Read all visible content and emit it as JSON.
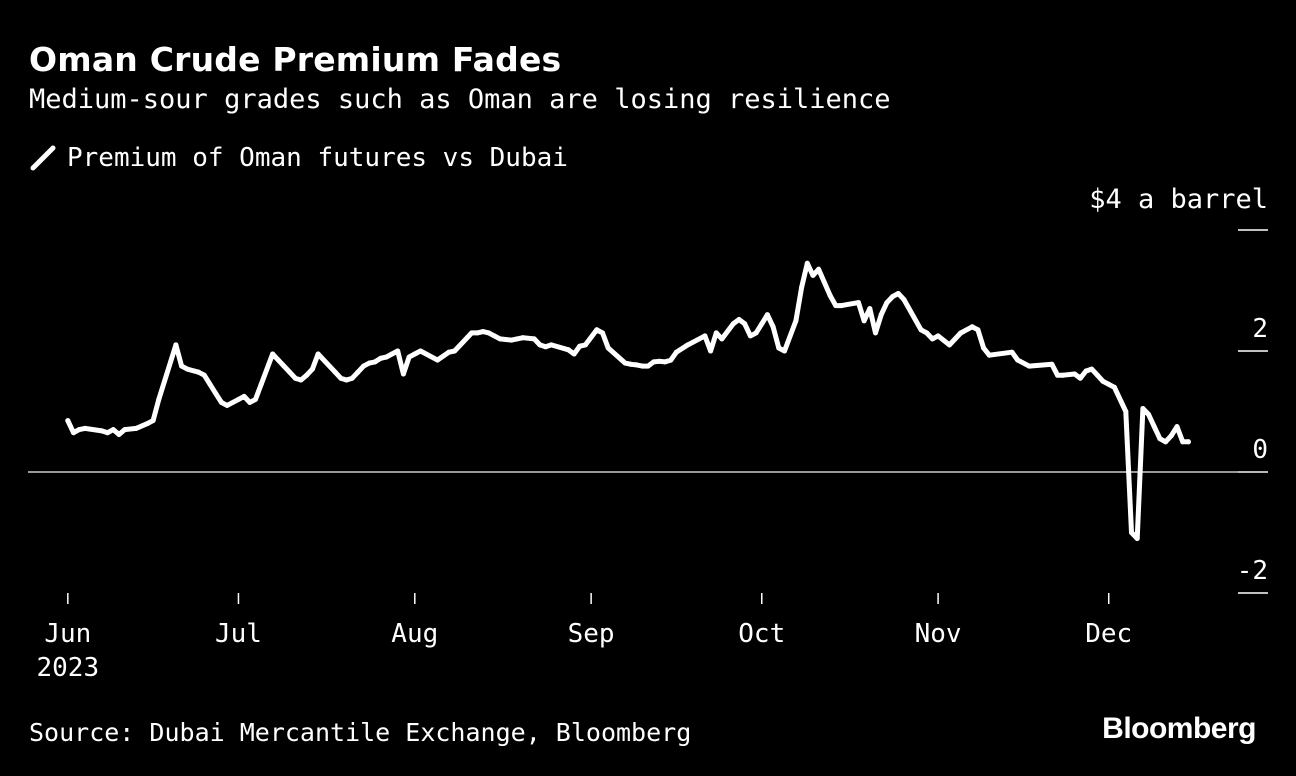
{
  "header": {
    "title": "Oman Crude Premium Fades",
    "subtitle": "Medium-sour grades such as Oman are losing resilience"
  },
  "legend": {
    "label": "Premium of Oman futures vs Dubai",
    "icon": "line-swatch-icon"
  },
  "footer": {
    "source": "Source: Dubai Mercantile Exchange, Bloomberg",
    "brand": "Bloomberg"
  },
  "colors": {
    "background": "#000000",
    "line": "#ffffff",
    "text": "#ffffff",
    "zero_line": "#cccccc"
  },
  "chart_data": {
    "type": "line",
    "title": "Oman Crude Premium Fades",
    "subtitle": "Medium-sour grades such as Oman are losing resilience",
    "unit_label": "$4 a barrel",
    "xlabel": "",
    "ylabel": "",
    "ylim": [
      -2,
      4
    ],
    "y_ticks": [
      {
        "value": 4,
        "label": "$4 a barrel"
      },
      {
        "value": 2,
        "label": "2"
      },
      {
        "value": 0,
        "label": "0"
      },
      {
        "value": -2,
        "label": "-2"
      }
    ],
    "x_ticks": [
      {
        "day": 0,
        "label": "Jun",
        "sublabel": "2023"
      },
      {
        "day": 30,
        "label": "Jul"
      },
      {
        "day": 61,
        "label": "Aug"
      },
      {
        "day": 92,
        "label": "Sep"
      },
      {
        "day": 122,
        "label": "Oct"
      },
      {
        "day": 153,
        "label": "Nov"
      },
      {
        "day": 183,
        "label": "Dec"
      }
    ],
    "x_range_days": [
      -7,
      211
    ],
    "grid": false,
    "series": [
      {
        "name": "Premium of Oman futures vs Dubai",
        "x": [
          0,
          1,
          2,
          3,
          6,
          7,
          8,
          9,
          10,
          12,
          14,
          15,
          16,
          19,
          20,
          21,
          23,
          24,
          25,
          26,
          27,
          28,
          30,
          31,
          32,
          33,
          34,
          36,
          37,
          38,
          39,
          40,
          41,
          42,
          43,
          44,
          47,
          48,
          49,
          50,
          51,
          52,
          53,
          54,
          55,
          56,
          57,
          58,
          59,
          60,
          61,
          62,
          65,
          67,
          68,
          71,
          72,
          73,
          74,
          75,
          76,
          78,
          79,
          80,
          82,
          83,
          84,
          85,
          88,
          89,
          90,
          91,
          93,
          94,
          95,
          98,
          99,
          100,
          101,
          102,
          103,
          104,
          105,
          106,
          107,
          109,
          112,
          113,
          114,
          115,
          117,
          118,
          119,
          120,
          121,
          122,
          123,
          124,
          125,
          126,
          128,
          129,
          130,
          131,
          132,
          134,
          135,
          136,
          139,
          140,
          141,
          142,
          143,
          144,
          145,
          146,
          147,
          150,
          151,
          152,
          153,
          155,
          157,
          159,
          160,
          161,
          162,
          166,
          167,
          169,
          173,
          174,
          175,
          177,
          178,
          179,
          180,
          181,
          182,
          183,
          184,
          186,
          187,
          188,
          189,
          190,
          191,
          192,
          193,
          194,
          195,
          196,
          197
        ],
        "values": [
          0.85,
          0.65,
          0.7,
          0.72,
          0.68,
          0.65,
          0.7,
          0.62,
          0.7,
          0.72,
          0.8,
          0.85,
          1.2,
          2.1,
          1.75,
          1.7,
          1.65,
          1.6,
          1.45,
          1.3,
          1.15,
          1.1,
          1.2,
          1.25,
          1.15,
          1.2,
          1.45,
          1.95,
          1.85,
          1.75,
          1.65,
          1.55,
          1.52,
          1.6,
          1.7,
          1.95,
          1.65,
          1.55,
          1.52,
          1.55,
          1.65,
          1.75,
          1.8,
          1.82,
          1.88,
          1.9,
          1.95,
          2.0,
          1.62,
          1.9,
          1.95,
          2.0,
          1.85,
          1.98,
          2.0,
          2.3,
          2.3,
          2.32,
          2.3,
          2.25,
          2.2,
          2.18,
          2.2,
          2.22,
          2.2,
          2.1,
          2.07,
          2.1,
          2.02,
          1.95,
          2.08,
          2.1,
          2.35,
          2.3,
          2.05,
          1.8,
          1.78,
          1.77,
          1.75,
          1.75,
          1.82,
          1.83,
          1.82,
          1.85,
          1.98,
          2.1,
          2.25,
          2.0,
          2.3,
          2.2,
          2.45,
          2.52,
          2.45,
          2.25,
          2.3,
          2.45,
          2.6,
          2.4,
          2.05,
          2.0,
          2.5,
          3.05,
          3.45,
          3.25,
          3.35,
          2.92,
          2.75,
          2.75,
          2.8,
          2.5,
          2.7,
          2.3,
          2.6,
          2.8,
          2.9,
          2.95,
          2.85,
          2.35,
          2.3,
          2.2,
          2.25,
          2.1,
          2.3,
          2.4,
          2.35,
          2.05,
          1.93,
          1.98,
          1.85,
          1.75,
          1.78,
          1.6,
          1.6,
          1.62,
          1.55,
          1.67,
          1.7,
          1.6,
          1.5,
          1.45,
          1.4,
          1.0,
          -1.0,
          -1.1,
          1.05,
          0.95,
          0.75,
          0.55,
          0.5,
          0.6,
          0.75,
          0.5,
          0.5
        ]
      }
    ]
  }
}
